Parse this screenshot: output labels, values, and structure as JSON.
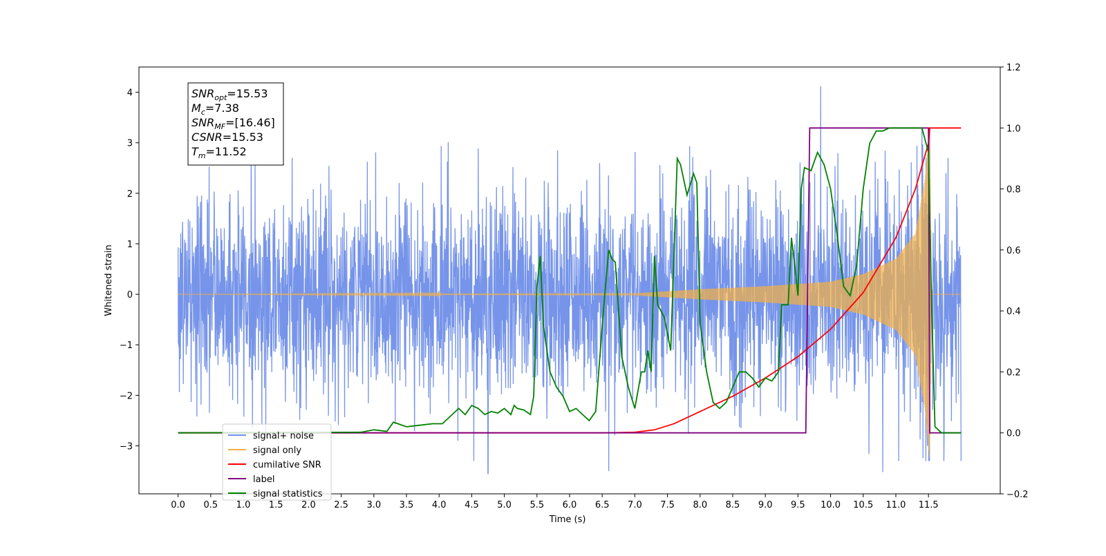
{
  "chart_data": {
    "type": "line",
    "xlabel": "Time (s)",
    "ylabel": "Whitened strain",
    "xlim": [
      -0.6,
      12.6
    ],
    "ylim": [
      -3.95,
      4.5
    ],
    "y2lim": [
      -0.2,
      1.2
    ],
    "x_ticks": [
      "0.0",
      "0.5",
      "1.0",
      "1.5",
      "2.0",
      "2.5",
      "3.0",
      "3.5",
      "4.0",
      "4.5",
      "5.0",
      "5.5",
      "6.0",
      "6.5",
      "7.0",
      "7.5",
      "8.0",
      "8.5",
      "9.0",
      "9.5",
      "10.0",
      "10.5",
      "11.0",
      "11.5"
    ],
    "y_ticks": [
      "−3",
      "−2",
      "−1",
      "0",
      "1",
      "2",
      "3",
      "4"
    ],
    "y2_ticks": [
      "−0.2",
      "0.0",
      "0.2",
      "0.4",
      "0.6",
      "0.8",
      "1.0",
      "1.2"
    ],
    "grid": false,
    "legend_position": "lower-left",
    "info_box": [
      {
        "sym": "SNR",
        "sub": "opt",
        "val": "=15.53"
      },
      {
        "sym": "M",
        "sub": "c",
        "val": "=7.38"
      },
      {
        "sym": "SNR",
        "sub": "MF",
        "val": "=[16.46]"
      },
      {
        "sym": "CSNR",
        "sub": "",
        "val": "=15.53"
      },
      {
        "sym": "T",
        "sub": "m",
        "val": "=11.52"
      }
    ],
    "series": [
      {
        "name": "signal+ noise",
        "color": "#6f8ee8",
        "axis": "left",
        "x_range": [
          0,
          12
        ],
        "noise_std": 1.0,
        "notable_peaks": [
          [
            9.85,
            4.12
          ],
          [
            4.75,
            -3.55
          ],
          [
            10.8,
            -3.52
          ],
          [
            6.6,
            -3.5
          ]
        ]
      },
      {
        "name": "signal only",
        "color": "#f5b041",
        "axis": "left",
        "description_points": [
          [
            0,
            0.0
          ],
          [
            7.0,
            0.02
          ],
          [
            8.0,
            0.1
          ],
          [
            9.0,
            0.16
          ],
          [
            10.0,
            0.25
          ],
          [
            10.5,
            0.4
          ],
          [
            11.0,
            0.7
          ],
          [
            11.3,
            1.2
          ],
          [
            11.45,
            2.3
          ],
          [
            11.52,
            3.3
          ],
          [
            11.55,
            0.0
          ],
          [
            12.0,
            0.0
          ]
        ]
      },
      {
        "name": "cumilative SNR",
        "color": "#ff0000",
        "axis": "right",
        "x": [
          0,
          6.5,
          7.0,
          7.3,
          7.6,
          8.0,
          8.5,
          9.0,
          9.5,
          10.0,
          10.5,
          11.0,
          11.3,
          11.5,
          11.52,
          12.0
        ],
        "y": [
          0.0,
          0.0,
          0.002,
          0.01,
          0.03,
          0.07,
          0.12,
          0.18,
          0.25,
          0.34,
          0.46,
          0.64,
          0.8,
          0.95,
          1.0,
          1.0
        ]
      },
      {
        "name": "label",
        "color": "#800080",
        "axis": "right",
        "x": [
          0,
          9.62,
          9.68,
          11.5,
          11.52,
          12.0
        ],
        "y": [
          0.0,
          0.0,
          1.0,
          1.0,
          0.0,
          0.0
        ]
      },
      {
        "name": "signal statistics",
        "color": "#008000",
        "axis": "right",
        "x": [
          0,
          2.8,
          3.0,
          3.2,
          3.3,
          3.5,
          3.7,
          3.9,
          4.05,
          4.2,
          4.3,
          4.4,
          4.5,
          4.6,
          4.7,
          4.8,
          4.9,
          5.0,
          5.1,
          5.15,
          5.2,
          5.3,
          5.4,
          5.45,
          5.5,
          5.55,
          5.6,
          5.7,
          5.8,
          5.9,
          6.0,
          6.1,
          6.2,
          6.3,
          6.4,
          6.5,
          6.55,
          6.6,
          6.65,
          6.7,
          6.8,
          6.9,
          7.0,
          7.1,
          7.15,
          7.2,
          7.25,
          7.3,
          7.35,
          7.45,
          7.55,
          7.65,
          7.7,
          7.8,
          7.9,
          7.95,
          8.0,
          8.1,
          8.2,
          8.3,
          8.4,
          8.5,
          8.6,
          8.7,
          8.8,
          8.9,
          9.0,
          9.1,
          9.2,
          9.25,
          9.35,
          9.4,
          9.45,
          9.5,
          9.55,
          9.6,
          9.7,
          9.8,
          9.9,
          10.0,
          10.1,
          10.2,
          10.3,
          10.4,
          10.5,
          10.6,
          10.7,
          10.8,
          10.9,
          11.0,
          11.1,
          11.2,
          11.3,
          11.4,
          11.5,
          11.55,
          11.6,
          11.7,
          11.8,
          11.9,
          12.0
        ],
        "y": [
          0.0,
          0.002,
          0.01,
          0.005,
          0.035,
          0.02,
          0.025,
          0.03,
          0.03,
          0.06,
          0.08,
          0.06,
          0.09,
          0.08,
          0.06,
          0.07,
          0.065,
          0.08,
          0.06,
          0.09,
          0.08,
          0.075,
          0.06,
          0.12,
          0.48,
          0.58,
          0.35,
          0.2,
          0.15,
          0.12,
          0.07,
          0.08,
          0.06,
          0.04,
          0.07,
          0.35,
          0.48,
          0.6,
          0.57,
          0.56,
          0.25,
          0.15,
          0.08,
          0.2,
          0.2,
          0.27,
          0.2,
          0.58,
          0.42,
          0.38,
          0.27,
          0.9,
          0.88,
          0.78,
          0.85,
          0.82,
          0.36,
          0.2,
          0.1,
          0.08,
          0.1,
          0.15,
          0.2,
          0.2,
          0.18,
          0.15,
          0.18,
          0.17,
          0.2,
          0.42,
          0.42,
          0.64,
          0.55,
          0.45,
          0.8,
          0.87,
          0.86,
          0.92,
          0.88,
          0.8,
          0.65,
          0.48,
          0.45,
          0.55,
          0.8,
          0.95,
          0.99,
          0.99,
          1.0,
          1.0,
          1.0,
          1.0,
          1.0,
          1.0,
          0.92,
          0.4,
          0.02,
          0.0,
          0.0,
          0.0,
          0.0
        ]
      }
    ]
  }
}
